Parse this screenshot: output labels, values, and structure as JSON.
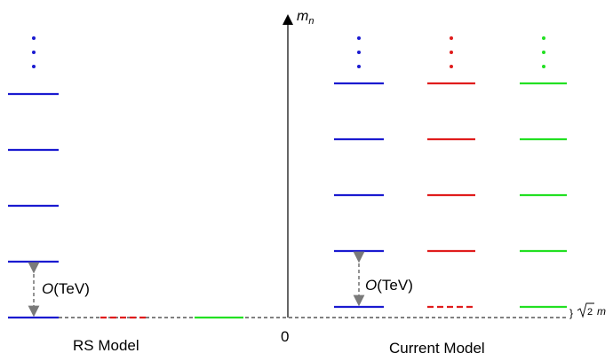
{
  "colors": {
    "blue": "#1a1ad0",
    "red": "#e01c1c",
    "green": "#22e022",
    "gray": "#7a7a7a",
    "black": "#000000"
  },
  "axis": {
    "label_main": "m",
    "label_sub": "n",
    "origin_label": "0"
  },
  "rs_model": {
    "label": "RS Model",
    "gap_label_italic": "O",
    "gap_label_rest": "(TeV)"
  },
  "current_model": {
    "label": "Current Model",
    "gap_label_italic": "O",
    "gap_label_rest": "(TeV)",
    "offset_brace": "}",
    "offset_radicand": "2",
    "offset_mass": "m"
  }
}
